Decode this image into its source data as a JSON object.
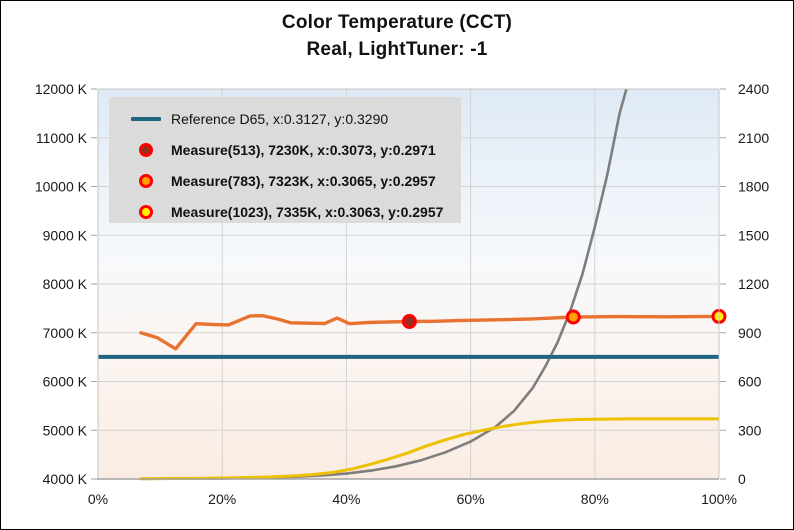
{
  "title": {
    "line1": "Color Temperature (CCT)",
    "line2": "Real, LightTuner: -1"
  },
  "legend": {
    "items": [
      {
        "label": "Reference D65, x:0.3127, y:0.3290",
        "marker": "line",
        "color": "#1F6480",
        "bold": false
      },
      {
        "label": "Measure(513), 7230K, x:0.3073, y:0.2971",
        "marker": "circle",
        "fill": "#96301C",
        "stroke": "#FF0000",
        "bold": true
      },
      {
        "label": "Measure(783), 7323K, x:0.3065, y:0.2957",
        "marker": "circle",
        "fill": "#FFA200",
        "stroke": "#FF0000",
        "bold": true
      },
      {
        "label": "Measure(1023), 7335K, x:0.3063, y:0.2957",
        "marker": "circle",
        "fill": "#FFF200",
        "stroke": "#FF0000",
        "bold": true
      }
    ]
  },
  "colors": {
    "plot_bg_top": "#DFEAF6",
    "plot_bg_mid": "#F7F9FB",
    "plot_bg_low": "#FBF2EC",
    "plot_bg_bottom": "#FAECE2",
    "gridline": "#D3D3D3",
    "plot_border": "#C6C6C6",
    "x_axis_line": "#A3A3A3",
    "tick": "#A3A3A3",
    "axis_label": "#1A1A1A",
    "legend_bg": "#DBDBDB"
  },
  "chart_data": {
    "type": "line",
    "title": "Color Temperature (CCT)",
    "subtitle": "Real, LightTuner: -1",
    "grid": true,
    "legend_position": "top-left-inside",
    "x_axis": {
      "range": [
        0,
        100
      ],
      "tick_values": [
        0,
        20,
        40,
        60,
        80,
        100
      ],
      "tick_labels": [
        "0%",
        "20%",
        "40%",
        "60%",
        "80%",
        "100%"
      ]
    },
    "y_axis_left": {
      "unit": "K",
      "range": [
        4000,
        12000
      ],
      "tick_values": [
        4000,
        5000,
        6000,
        7000,
        8000,
        9000,
        10000,
        11000,
        12000
      ],
      "tick_labels": [
        "4000 K",
        "5000 K",
        "6000 K",
        "7000 K",
        "8000 K",
        "9000 K",
        "10000 K",
        "11000 K",
        "12000 K"
      ]
    },
    "y_axis_right": {
      "range": [
        0,
        2400
      ],
      "tick_values": [
        0,
        300,
        600,
        900,
        1200,
        1500,
        1800,
        2100,
        2400
      ],
      "tick_labels": [
        "0",
        "300",
        "600",
        "900",
        "1200",
        "1500",
        "1800",
        "2100",
        "2400"
      ]
    },
    "series": [
      {
        "name": "gray-curve",
        "axis": "right",
        "color": "#7E7E7E",
        "width": 2.6,
        "points": [
          [
            6.9,
            1
          ],
          [
            12,
            2
          ],
          [
            16,
            3
          ],
          [
            20,
            4
          ],
          [
            24,
            6
          ],
          [
            28,
            9
          ],
          [
            32,
            14
          ],
          [
            36,
            22
          ],
          [
            40,
            33
          ],
          [
            44,
            52
          ],
          [
            48,
            78
          ],
          [
            52,
            115
          ],
          [
            56,
            165
          ],
          [
            60,
            230
          ],
          [
            64,
            320
          ],
          [
            67,
            420
          ],
          [
            70,
            560
          ],
          [
            72,
            690
          ],
          [
            74,
            840
          ],
          [
            76,
            1030
          ],
          [
            78,
            1260
          ],
          [
            80,
            1550
          ],
          [
            82,
            1870
          ],
          [
            84,
            2250
          ],
          [
            85.6,
            2470
          ]
        ]
      },
      {
        "name": "yellow-curve",
        "axis": "right",
        "color": "#EDC000",
        "width": 3,
        "points": [
          [
            6.9,
            2
          ],
          [
            12,
            3
          ],
          [
            16,
            4
          ],
          [
            20,
            6
          ],
          [
            24,
            9
          ],
          [
            28,
            13
          ],
          [
            32,
            20
          ],
          [
            35,
            28
          ],
          [
            38,
            42
          ],
          [
            41,
            62
          ],
          [
            44,
            92
          ],
          [
            47,
            125
          ],
          [
            50,
            162
          ],
          [
            53,
            205
          ],
          [
            56,
            242
          ],
          [
            59,
            275
          ],
          [
            62,
            300
          ],
          [
            65,
            322
          ],
          [
            68,
            340
          ],
          [
            71,
            352
          ],
          [
            74,
            361
          ],
          [
            77,
            366
          ],
          [
            80,
            368
          ],
          [
            85,
            370
          ],
          [
            90,
            370
          ],
          [
            95,
            370
          ],
          [
            100,
            370
          ]
        ]
      },
      {
        "name": "reference-d65",
        "axis": "left",
        "type": "hline",
        "color": "#1F6480",
        "width": 4,
        "value": 6504,
        "label": "Reference D65, x:0.3127, y:0.3290",
        "cie_x": 0.3127,
        "cie_y": 0.329
      },
      {
        "name": "cct-measured",
        "axis": "left",
        "color": "#E8722F",
        "width": 3.4,
        "points": [
          [
            6.9,
            7000
          ],
          [
            9.5,
            6900
          ],
          [
            12.5,
            6670
          ],
          [
            15.8,
            7185
          ],
          [
            18.5,
            7170
          ],
          [
            21,
            7160
          ],
          [
            24.5,
            7345
          ],
          [
            26.5,
            7350
          ],
          [
            29,
            7280
          ],
          [
            31,
            7205
          ],
          [
            34,
            7195
          ],
          [
            36.5,
            7190
          ],
          [
            38.5,
            7300
          ],
          [
            40.5,
            7185
          ],
          [
            43.5,
            7210
          ],
          [
            46.5,
            7220
          ],
          [
            50.15,
            7230
          ],
          [
            54,
            7235
          ],
          [
            58,
            7250
          ],
          [
            62,
            7260
          ],
          [
            66,
            7270
          ],
          [
            70,
            7285
          ],
          [
            73,
            7300
          ],
          [
            76.54,
            7323
          ],
          [
            80,
            7328
          ],
          [
            84,
            7332
          ],
          [
            88,
            7330
          ],
          [
            92,
            7328
          ],
          [
            96,
            7332
          ],
          [
            100,
            7335
          ]
        ]
      }
    ],
    "markers": [
      {
        "name": "measure-513",
        "x": 50.15,
        "kelvin": 7230,
        "fill": "#96301C",
        "stroke": "#FF0000",
        "label": "Measure(513), 7230K, x:0.3073, y:0.2971"
      },
      {
        "name": "measure-783",
        "x": 76.54,
        "kelvin": 7323,
        "fill": "#FFA200",
        "stroke": "#FF0000",
        "label": "Measure(783), 7323K, x:0.3065, y:0.2957"
      },
      {
        "name": "measure-1023",
        "x": 100,
        "kelvin": 7335,
        "fill": "#FFF200",
        "stroke": "#FF0000",
        "label": "Measure(1023), 7335K, x:0.3063, y:0.2957"
      }
    ]
  }
}
